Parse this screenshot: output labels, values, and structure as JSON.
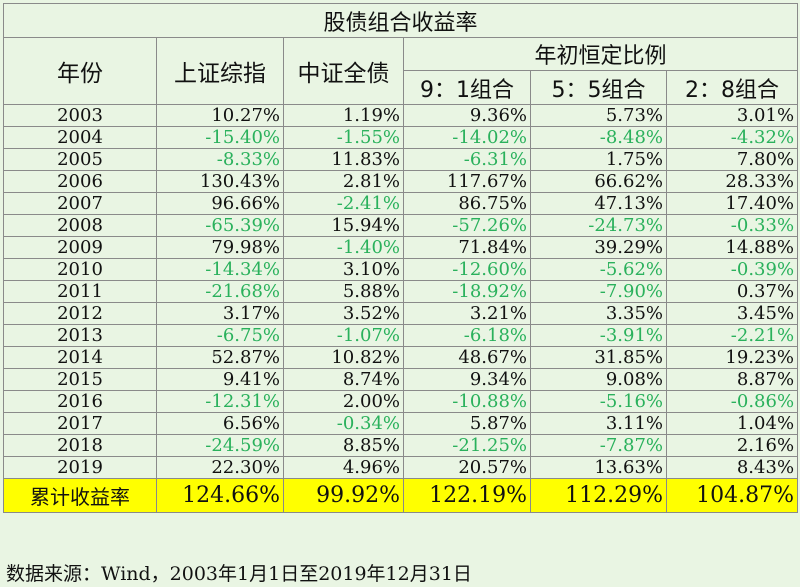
{
  "title": "股债组合收益率",
  "headers": {
    "year": "年份",
    "sse": "上证综指",
    "csi_bond": "中证全债",
    "group": "年初恒定比例",
    "r91": "9：1组合",
    "r55": "5：5组合",
    "r28": "2：8组合"
  },
  "rows": [
    {
      "year": "2003",
      "values": [
        "10.27%",
        "1.19%",
        "9.36%",
        "5.73%",
        "3.01%"
      ]
    },
    {
      "year": "2004",
      "values": [
        "-15.40%",
        "-1.55%",
        "-14.02%",
        "-8.48%",
        "-4.32%"
      ]
    },
    {
      "year": "2005",
      "values": [
        "-8.33%",
        "11.83%",
        "-6.31%",
        "1.75%",
        "7.80%"
      ]
    },
    {
      "year": "2006",
      "values": [
        "130.43%",
        "2.81%",
        "117.67%",
        "66.62%",
        "28.33%"
      ]
    },
    {
      "year": "2007",
      "values": [
        "96.66%",
        "-2.41%",
        "86.75%",
        "47.13%",
        "17.40%"
      ]
    },
    {
      "year": "2008",
      "values": [
        "-65.39%",
        "15.94%",
        "-57.26%",
        "-24.73%",
        "-0.33%"
      ]
    },
    {
      "year": "2009",
      "values": [
        "79.98%",
        "-1.40%",
        "71.84%",
        "39.29%",
        "14.88%"
      ]
    },
    {
      "year": "2010",
      "values": [
        "-14.34%",
        "3.10%",
        "-12.60%",
        "-5.62%",
        "-0.39%"
      ]
    },
    {
      "year": "2011",
      "values": [
        "-21.68%",
        "5.88%",
        "-18.92%",
        "-7.90%",
        "0.37%"
      ]
    },
    {
      "year": "2012",
      "values": [
        "3.17%",
        "3.52%",
        "3.21%",
        "3.35%",
        "3.45%"
      ]
    },
    {
      "year": "2013",
      "values": [
        "-6.75%",
        "-1.07%",
        "-6.18%",
        "-3.91%",
        "-2.21%"
      ]
    },
    {
      "year": "2014",
      "values": [
        "52.87%",
        "10.82%",
        "48.67%",
        "31.85%",
        "19.23%"
      ]
    },
    {
      "year": "2015",
      "values": [
        "9.41%",
        "8.74%",
        "9.34%",
        "9.08%",
        "8.87%"
      ]
    },
    {
      "year": "2016",
      "values": [
        "-12.31%",
        "2.00%",
        "-10.88%",
        "-5.16%",
        "-0.86%"
      ]
    },
    {
      "year": "2017",
      "values": [
        "6.56%",
        "-0.34%",
        "5.87%",
        "3.11%",
        "1.04%"
      ]
    },
    {
      "year": "2018",
      "values": [
        "-24.59%",
        "8.85%",
        "-21.25%",
        "-7.87%",
        "2.16%"
      ]
    },
    {
      "year": "2019",
      "values": [
        "22.30%",
        "4.96%",
        "20.57%",
        "13.63%",
        "8.43%"
      ]
    }
  ],
  "total": {
    "label": "累计收益率",
    "values": [
      "124.66%",
      "99.92%",
      "122.19%",
      "112.29%",
      "104.87%"
    ]
  },
  "source": "数据来源：Wind，2003年1月1日至2019年12月31日",
  "colors": {
    "negative": "#2ab15c",
    "highlight": "#ffff00",
    "background": "#e9f5e3"
  }
}
